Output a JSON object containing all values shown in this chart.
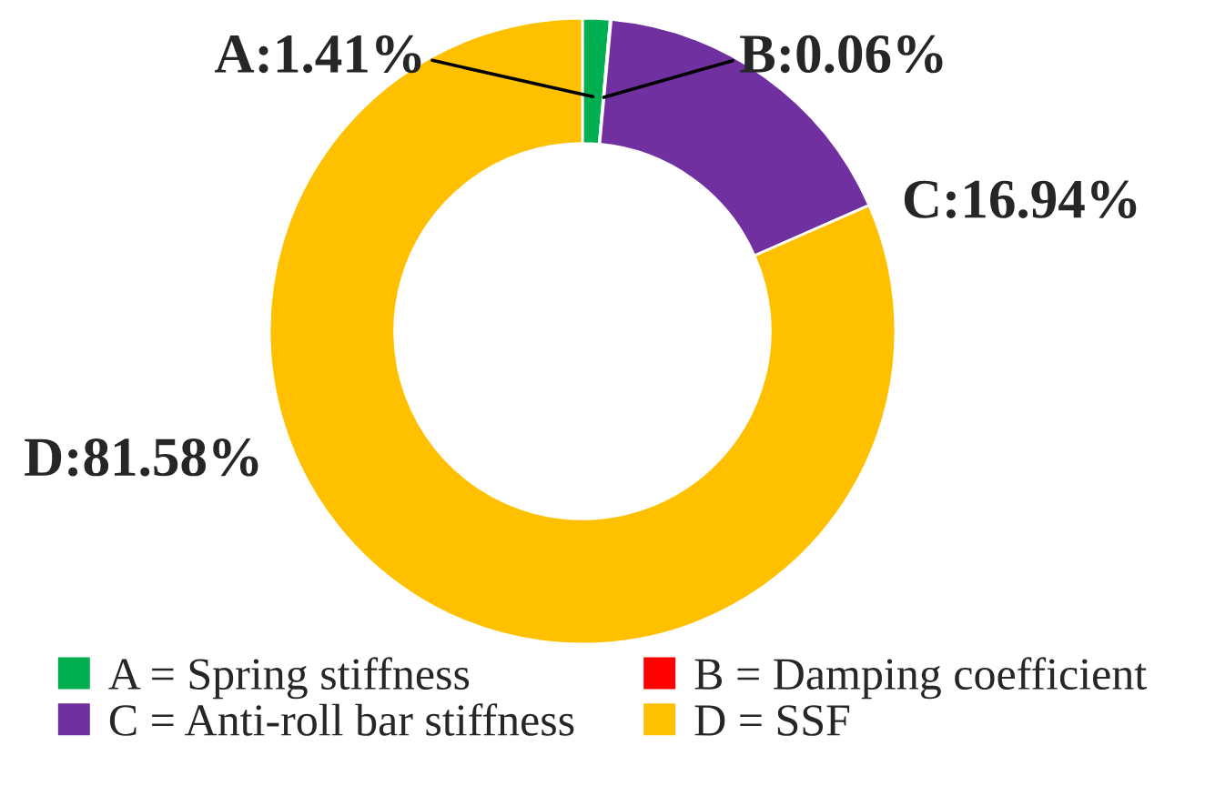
{
  "chart_data": {
    "type": "donut",
    "categories": [
      "A = Spring stiffness",
      "B = Damping coefficient",
      "C = Anti-roll bar stiffness",
      "D = SSF"
    ],
    "values": [
      1.41,
      0.06,
      16.94,
      81.58
    ],
    "colors": [
      "#00b050",
      "#ff0000",
      "#7030a0",
      "#ffc000"
    ],
    "value_labels": [
      "A:1.41%",
      "B:0.06%",
      "C:16.94%",
      "D:81.58%"
    ],
    "legend": "bottom"
  }
}
